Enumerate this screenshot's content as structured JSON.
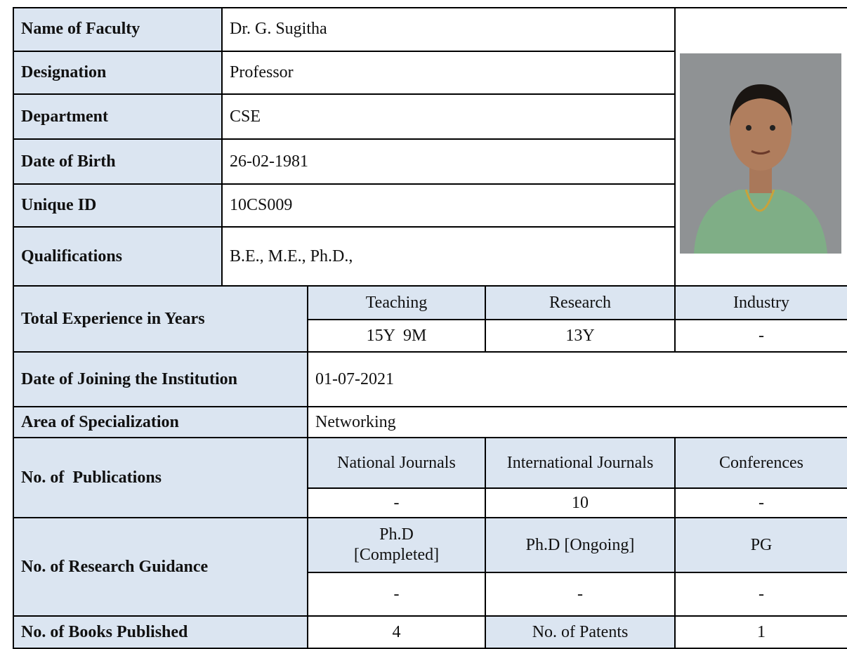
{
  "profile": {
    "rows": [
      {
        "label": "Name of Faculty",
        "value": "Dr. G. Sugitha"
      },
      {
        "label": "Designation",
        "value": "Professor"
      },
      {
        "label": "Department",
        "value": "CSE"
      },
      {
        "label": "Date of Birth",
        "value": "26-02-1981"
      },
      {
        "label": "Unique ID",
        "value": "10CS009"
      },
      {
        "label": "Qualifications",
        "value": "B.E., M.E., Ph.D.,"
      }
    ],
    "experience": {
      "label": "Total Experience in Years",
      "headers": [
        "Teaching",
        "Research",
        "Industry"
      ],
      "values": [
        "15Y  9M",
        "13Y",
        "-"
      ]
    },
    "joining": {
      "label": "Date of Joining the Institution",
      "value": "01-07-2021"
    },
    "specialization": {
      "label": "Area of Specialization",
      "value": "Networking"
    },
    "publications": {
      "label": "No. of  Publications",
      "headers": [
        "National Journals",
        "International Journals",
        "Conferences"
      ],
      "values": [
        "-",
        10,
        "-"
      ]
    },
    "guidance": {
      "label": "No. of Research Guidance",
      "headers": [
        "Ph.D [Completed]",
        "Ph.D [Ongoing]",
        "PG"
      ],
      "values": [
        "-",
        "-",
        "-"
      ]
    },
    "books": {
      "label": "No. of Books Published",
      "value": 4,
      "patents_label": "No. of Patents",
      "patents_value": 1
    }
  }
}
